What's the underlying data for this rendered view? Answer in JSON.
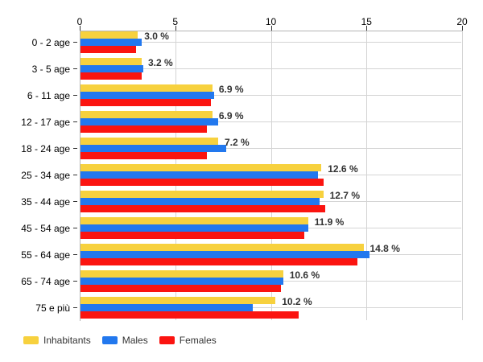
{
  "chart_data": {
    "type": "bar",
    "orientation": "horizontal",
    "title": "",
    "categories": [
      "0 - 2 age",
      "3 - 5 age",
      "6 - 11 age",
      "12 - 17 age",
      "18 - 24 age",
      "25 - 34 age",
      "35 - 44 age",
      "45 - 54 age",
      "55 - 64 age",
      "65 - 74 age",
      "75 e più"
    ],
    "series": [
      {
        "name": "Inhabitants",
        "color": "#F7D13E",
        "values": [
          3.0,
          3.2,
          6.9,
          6.9,
          7.2,
          12.6,
          12.7,
          11.9,
          14.8,
          10.6,
          10.2
        ]
      },
      {
        "name": "Males",
        "color": "#2278EE",
        "values": [
          3.2,
          3.3,
          7.0,
          7.2,
          7.6,
          12.4,
          12.5,
          11.9,
          15.1,
          10.6,
          9.0
        ]
      },
      {
        "name": "Females",
        "color": "#FB1410",
        "values": [
          2.9,
          3.2,
          6.8,
          6.6,
          6.6,
          12.7,
          12.8,
          11.7,
          14.5,
          10.5,
          11.4
        ]
      }
    ],
    "value_labels": [
      "3.0 %",
      "3.2 %",
      "6.9 %",
      "6.9 %",
      "7.2 %",
      "12.6 %",
      "12.7 %",
      "11.9 %",
      "14.8 %",
      "10.6 %",
      "10.2 %"
    ],
    "x_axis": {
      "position": "top",
      "min": 0,
      "max": 20,
      "tick_labels": [
        "0",
        "5",
        "10",
        "15",
        "20"
      ],
      "tick_values": [
        0,
        5,
        10,
        15,
        20
      ]
    },
    "grid": true,
    "legend_position": "bottom-left",
    "legend": [
      "Inhabitants",
      "Males",
      "Females"
    ]
  },
  "colors": {
    "grid": "#d4d4d4",
    "axis": "#b3b3b3",
    "category_text": "#000000",
    "value_text": "#333333",
    "background": "#ffffff"
  }
}
